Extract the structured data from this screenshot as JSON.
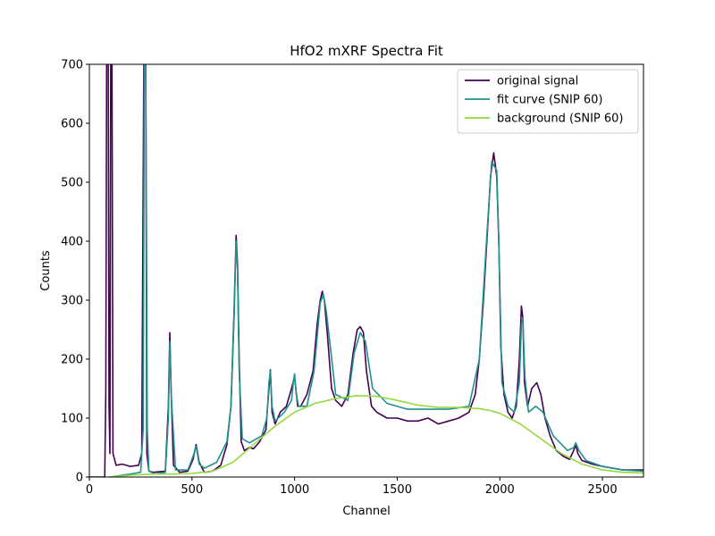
{
  "chart_data": {
    "type": "line",
    "title": "HfO2 mXRF Spectra Fit",
    "xlabel": "Channel",
    "ylabel": "Counts",
    "xlim": [
      0,
      2700
    ],
    "ylim": [
      0,
      700
    ],
    "xticks": [
      0,
      500,
      1000,
      1500,
      2000,
      2500
    ],
    "yticks": [
      0,
      100,
      200,
      300,
      400,
      500,
      600,
      700
    ],
    "grid": false,
    "legend_position": "top-right",
    "series": [
      {
        "name": "original signal",
        "color": "#440154",
        "x": [
          0,
          60,
          75,
          80,
          84,
          88,
          92,
          96,
          100,
          104,
          110,
          115,
          130,
          160,
          200,
          240,
          255,
          265,
          270,
          275,
          280,
          290,
          310,
          340,
          370,
          385,
          392,
          398,
          410,
          440,
          480,
          505,
          520,
          535,
          560,
          600,
          640,
          670,
          690,
          705,
          715,
          722,
          730,
          740,
          755,
          780,
          800,
          830,
          860,
          875,
          882,
          890,
          905,
          930,
          960,
          985,
          1000,
          1015,
          1030,
          1060,
          1090,
          1110,
          1125,
          1135,
          1145,
          1160,
          1180,
          1200,
          1230,
          1260,
          1285,
          1305,
          1320,
          1335,
          1350,
          1375,
          1400,
          1450,
          1500,
          1550,
          1600,
          1650,
          1700,
          1750,
          1800,
          1850,
          1880,
          1900,
          1920,
          1940,
          1955,
          1970,
          1985,
          1995,
          2005,
          2020,
          2040,
          2060,
          2080,
          2095,
          2105,
          2112,
          2120,
          2135,
          2155,
          2180,
          2200,
          2220,
          2245,
          2275,
          2310,
          2340,
          2360,
          2370,
          2380,
          2400,
          2450,
          2500,
          2550,
          2600,
          2650,
          2700
        ],
        "y": [
          0,
          0,
          0,
          150,
          700,
          700,
          700,
          120,
          40,
          700,
          700,
          40,
          20,
          22,
          18,
          20,
          40,
          700,
          700,
          700,
          40,
          10,
          8,
          9,
          10,
          120,
          245,
          150,
          20,
          8,
          10,
          30,
          55,
          25,
          8,
          10,
          20,
          55,
          120,
          280,
          410,
          360,
          200,
          60,
          45,
          50,
          48,
          60,
          80,
          150,
          182,
          110,
          90,
          110,
          120,
          150,
          170,
          120,
          120,
          140,
          180,
          260,
          300,
          315,
          300,
          240,
          150,
          130,
          120,
          140,
          210,
          250,
          255,
          245,
          180,
          120,
          110,
          100,
          100,
          95,
          95,
          100,
          90,
          95,
          100,
          110,
          140,
          200,
          300,
          420,
          510,
          550,
          510,
          400,
          220,
          140,
          110,
          100,
          120,
          200,
          290,
          270,
          160,
          120,
          150,
          160,
          140,
          100,
          70,
          45,
          35,
          30,
          45,
          55,
          40,
          28,
          22,
          18,
          15,
          12,
          12,
          12
        ]
      },
      {
        "name": "fit curve (SNIP 60)",
        "color": "#21918c",
        "x": [
          100,
          200,
          250,
          262,
          268,
          275,
          282,
          290,
          320,
          370,
          385,
          392,
          400,
          420,
          480,
          505,
          520,
          535,
          560,
          620,
          670,
          690,
          705,
          715,
          722,
          730,
          745,
          780,
          840,
          865,
          875,
          882,
          890,
          905,
          950,
          985,
          995,
          1000,
          1008,
          1020,
          1060,
          1095,
          1125,
          1140,
          1155,
          1200,
          1260,
          1290,
          1320,
          1345,
          1380,
          1450,
          1550,
          1650,
          1750,
          1850,
          1900,
          1935,
          1960,
          1985,
          1995,
          2010,
          2040,
          2070,
          2095,
          2105,
          2112,
          2122,
          2140,
          2175,
          2210,
          2260,
          2330,
          2360,
          2370,
          2385,
          2420,
          2500,
          2600,
          2700
        ],
        "y": [
          0,
          5,
          8,
          80,
          700,
          700,
          80,
          10,
          5,
          8,
          100,
          230,
          130,
          12,
          12,
          35,
          52,
          22,
          15,
          25,
          60,
          120,
          270,
          400,
          350,
          180,
          65,
          58,
          70,
          100,
          160,
          180,
          120,
          95,
          110,
          130,
          165,
          175,
          140,
          120,
          120,
          180,
          295,
          310,
          280,
          140,
          130,
          210,
          245,
          230,
          150,
          125,
          115,
          115,
          115,
          120,
          200,
          400,
          535,
          520,
          400,
          160,
          120,
          110,
          160,
          260,
          270,
          170,
          110,
          120,
          110,
          70,
          45,
          50,
          58,
          45,
          28,
          18,
          12,
          10
        ]
      },
      {
        "name": "background (SNIP 60)",
        "color": "#95d840",
        "x": [
          100,
          200,
          300,
          400,
          500,
          600,
          700,
          800,
          900,
          1000,
          1100,
          1200,
          1300,
          1400,
          1500,
          1600,
          1700,
          1800,
          1900,
          1950,
          2000,
          2100,
          2200,
          2300,
          2400,
          2500,
          2600,
          2700
        ],
        "y": [
          0,
          3,
          5,
          5,
          6,
          10,
          25,
          55,
          85,
          110,
          125,
          133,
          138,
          137,
          130,
          122,
          118,
          118,
          116,
          113,
          108,
          90,
          65,
          40,
          22,
          12,
          8,
          7
        ]
      }
    ]
  }
}
